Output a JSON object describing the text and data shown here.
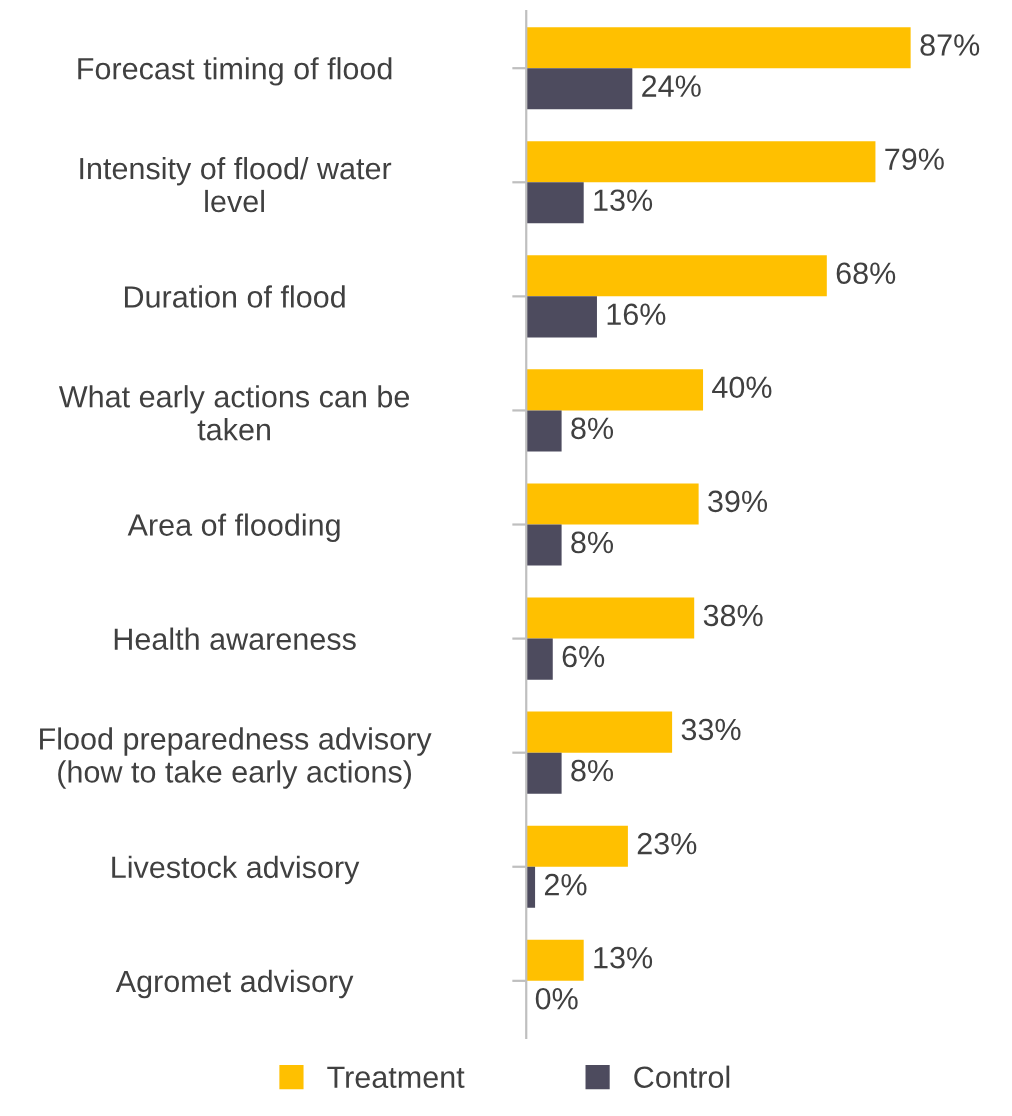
{
  "chart_data": {
    "type": "bar",
    "orientation": "horizontal",
    "categories": [
      "Forecast timing of flood",
      "Intensity of flood/ water\nlevel",
      "Duration of flood",
      "What early actions can be\ntaken",
      "Area of flooding",
      "Health awareness",
      "Flood preparedness advisory\n(how to take early actions)",
      "Livestock advisory",
      "Agromet advisory"
    ],
    "series": [
      {
        "name": "Treatment",
        "color": "#ffc000",
        "values": [
          87,
          79,
          68,
          40,
          39,
          38,
          33,
          23,
          13
        ],
        "value_labels": [
          "87%",
          "79%",
          "68%",
          "40%",
          "39%",
          "38%",
          "33%",
          "23%",
          "13%"
        ]
      },
      {
        "name": "Control",
        "color": "#4d4b5e",
        "values": [
          24,
          13,
          16,
          8,
          8,
          6,
          8,
          2,
          0
        ],
        "value_labels": [
          "24%",
          "13%",
          "16%",
          "8%",
          "8%",
          "6%",
          "8%",
          "2%",
          "0%"
        ]
      }
    ],
    "tick_labels": "y",
    "grid": false,
    "legend": "bottom"
  }
}
